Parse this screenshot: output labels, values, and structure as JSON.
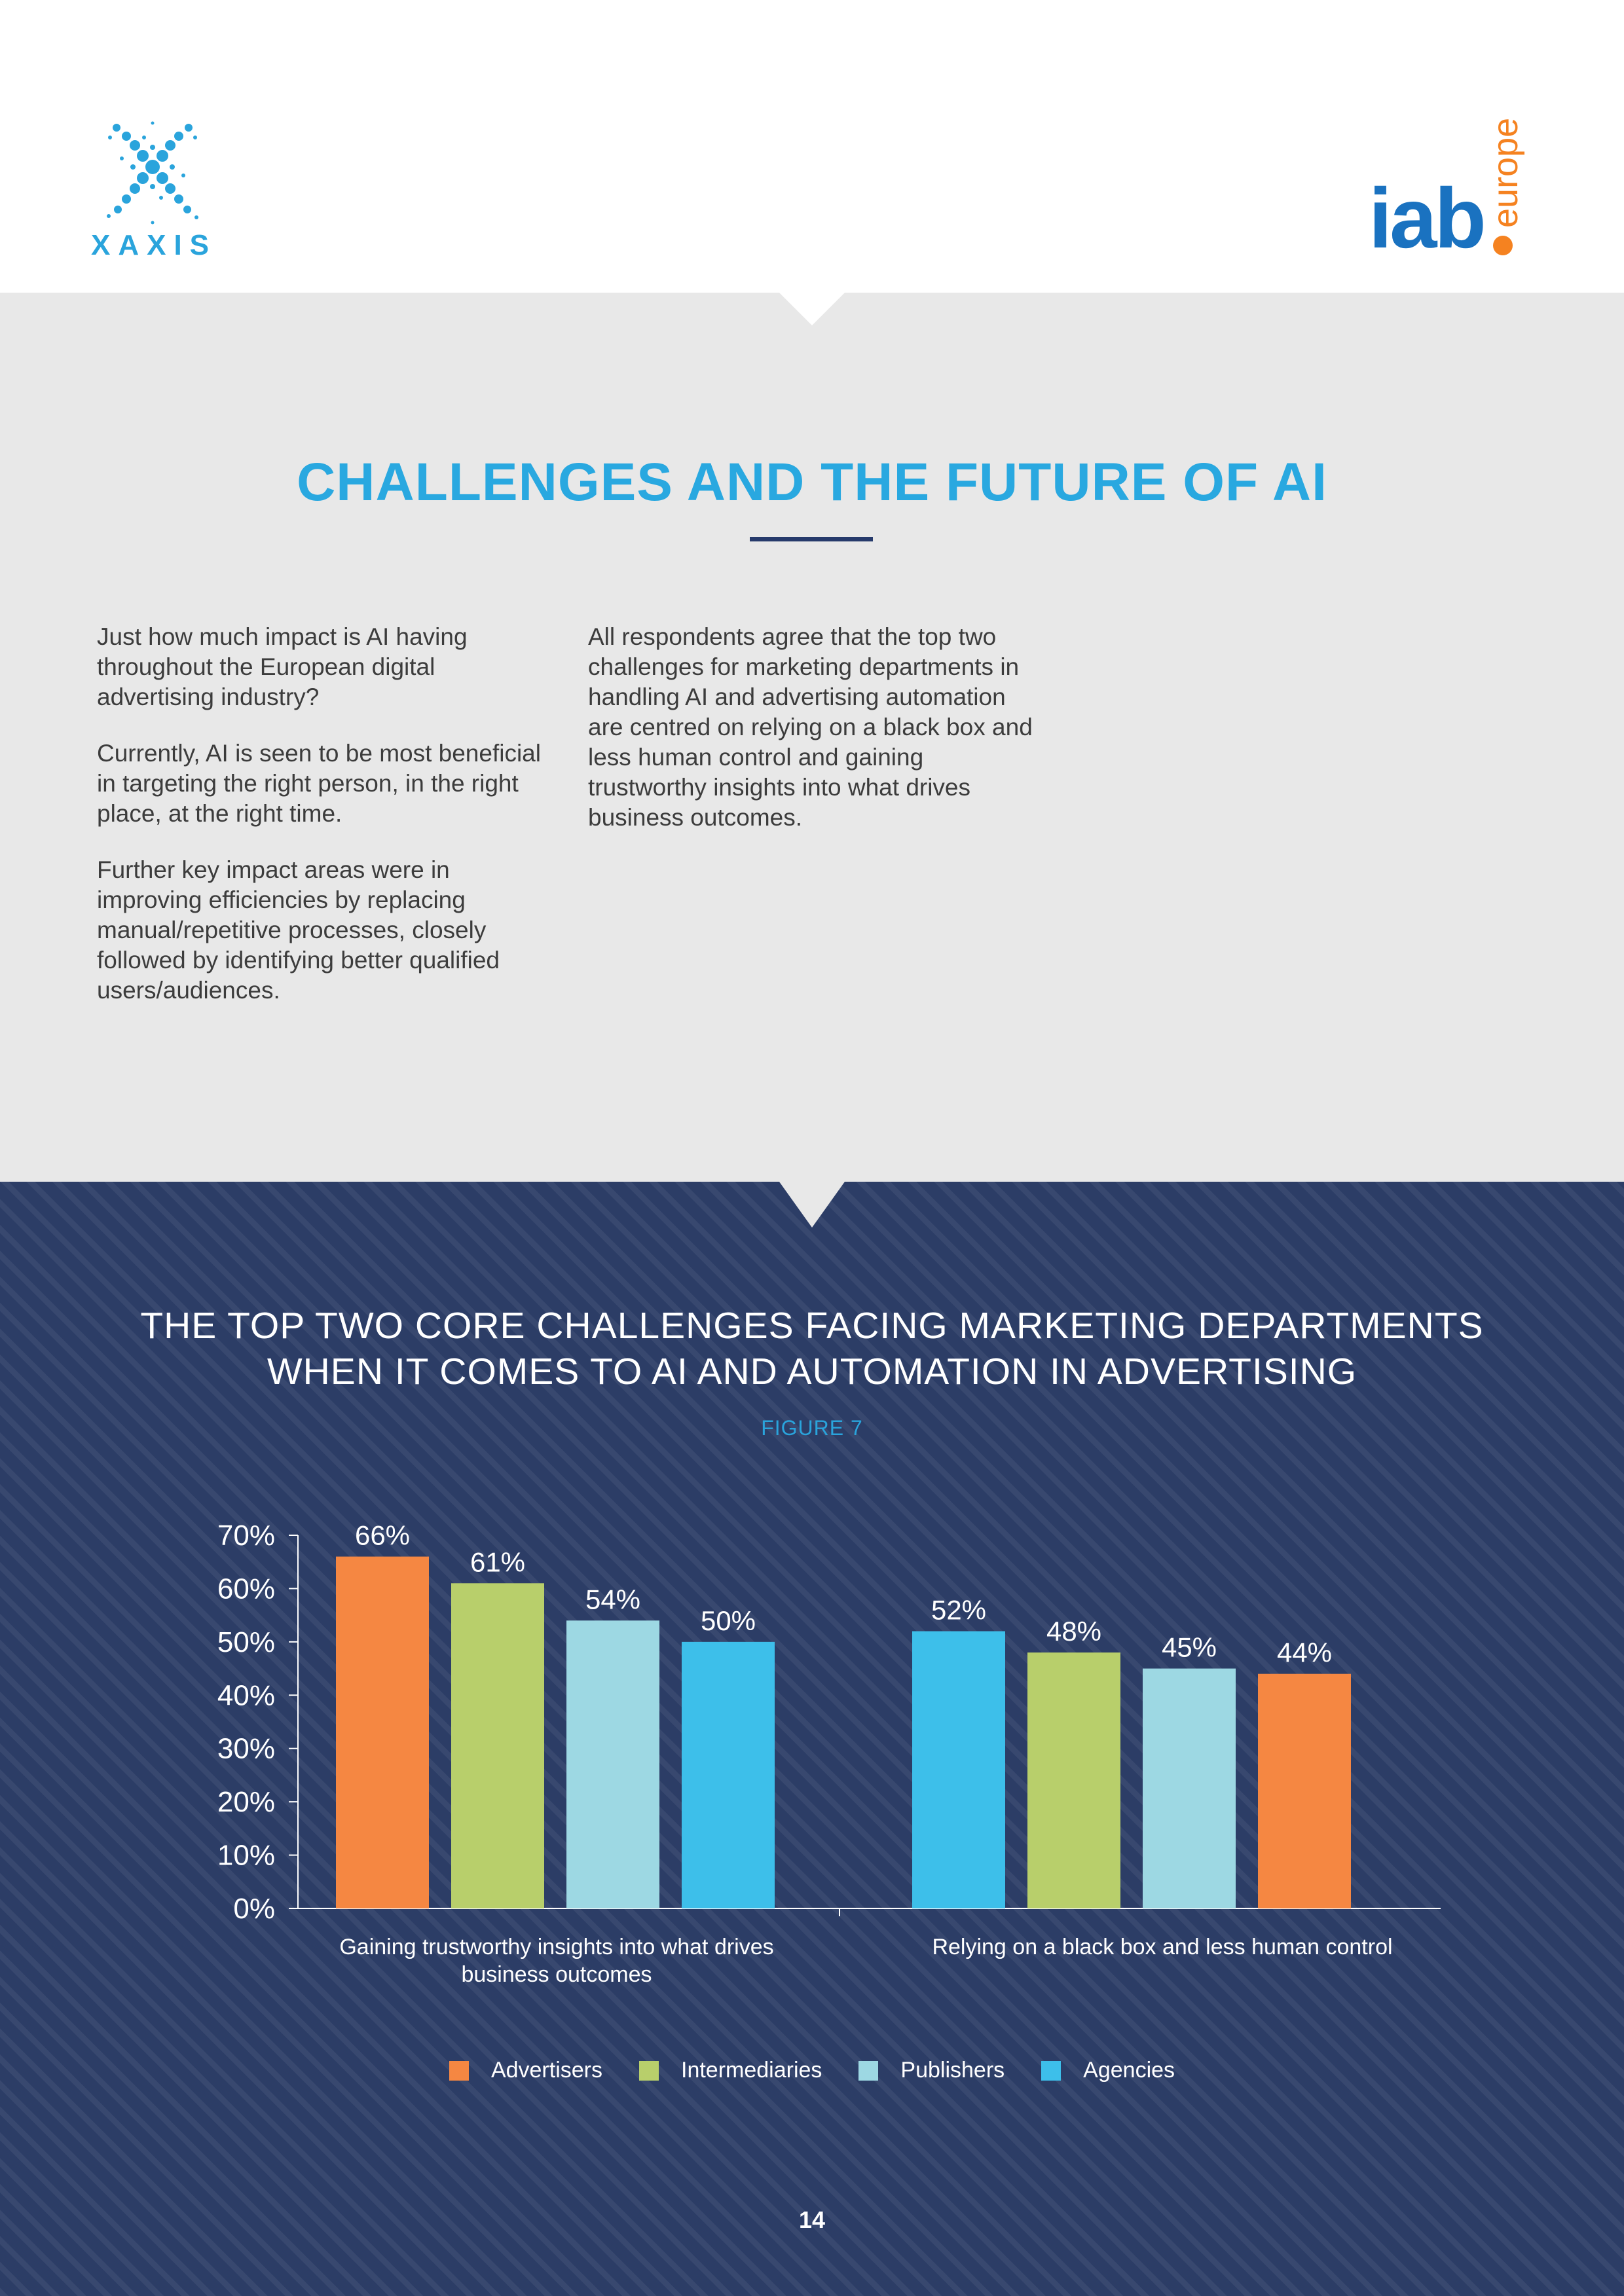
{
  "brand": {
    "left_logo_text": "XAXIS",
    "right_logo_text": "iab",
    "right_logo_sub": "europe"
  },
  "intro": {
    "title": "CHALLENGES AND THE FUTURE OF AI",
    "left_paragraphs": [
      "Just how much impact is AI having throughout the European digital advertising industry?",
      "Currently, AI is seen to be most beneficial in targeting the right person, in the right place, at the right time.",
      "Further key impact areas were in improving efficiencies by replacing manual/repetitive processes, closely followed by identifying better qualified users/audiences."
    ],
    "right_paragraphs": [
      "All respondents agree that the top two challenges for marketing departments in handling AI and advertising automation are centred on relying on a black box and less human control and gaining trustworthy insights into what drives business outcomes."
    ]
  },
  "chart_section": {
    "title_line1": "THE TOP TWO CORE CHALLENGES FACING MARKETING DEPARTMENTS",
    "title_line2": "WHEN IT COMES TO AI AND AUTOMATION IN ADVERTISING",
    "figure_label": "FIGURE 7"
  },
  "chart_data": {
    "type": "bar",
    "title": "THE TOP TWO CORE CHALLENGES FACING MARKETING DEPARTMENTS WHEN IT COMES TO AI AND AUTOMATION IN ADVERTISING",
    "xlabel": "",
    "ylabel": "",
    "ylim": [
      0,
      70
    ],
    "y_ticks": [
      0,
      10,
      20,
      30,
      40,
      50,
      60,
      70
    ],
    "y_tick_labels": [
      "0%",
      "10%",
      "20%",
      "30%",
      "40%",
      "50%",
      "60%",
      "70%"
    ],
    "legend_position": "bottom",
    "grid": false,
    "groups": [
      {
        "category_lines": [
          "Gaining  trustworthy insights  into  what drives",
          "business outcomes"
        ],
        "bars": [
          {
            "series": "Advertisers",
            "value": 66,
            "label": "66%"
          },
          {
            "series": "Intermediaries",
            "value": 61,
            "label": "61%"
          },
          {
            "series": "Publishers",
            "value": 54,
            "label": "54%"
          },
          {
            "series": "Agencies",
            "value": 50,
            "label": "50%"
          }
        ]
      },
      {
        "category_lines": [
          "Relying  on a black box and  less human control"
        ],
        "bars": [
          {
            "series": "Agencies",
            "value": 52,
            "label": "52%"
          },
          {
            "series": "Intermediaries",
            "value": 48,
            "label": "48%"
          },
          {
            "series": "Publishers",
            "value": 45,
            "label": "45%"
          },
          {
            "series": "Advertisers",
            "value": 44,
            "label": "44%"
          }
        ]
      }
    ],
    "legend": [
      {
        "name": "Advertisers",
        "color": "#f58742"
      },
      {
        "name": "Intermediaries",
        "color": "#b8cf6b"
      },
      {
        "name": "Publishers",
        "color": "#9dd8e3"
      },
      {
        "name": "Agencies",
        "color": "#3dbfea"
      }
    ]
  },
  "page_number": "14"
}
